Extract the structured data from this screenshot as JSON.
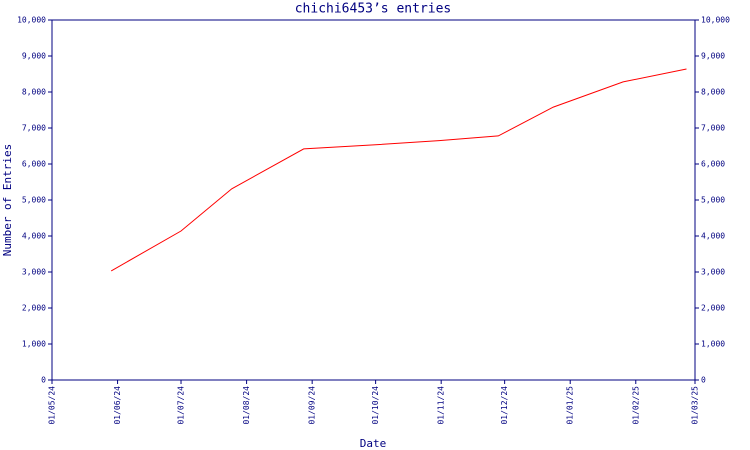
{
  "chart_data": {
    "type": "line",
    "title": "chichi6453’s entries",
    "x_label": "Date",
    "y_label": "Number of Entries",
    "x": [
      "29/05/24",
      "01/07/24",
      "25/07/24",
      "28/08/24",
      "30/09/24",
      "31/10/24",
      "28/11/24",
      "24/12/24",
      "26/01/25",
      "25/02/25"
    ],
    "series": [
      {
        "name": "entries",
        "color": "#ff0000",
        "values": [
          3030,
          4140,
          5310,
          6420,
          6530,
          6650,
          6780,
          7580,
          8280,
          8640
        ]
      }
    ],
    "xlim": [
      "01/05/24",
      "01/03/25"
    ],
    "xticks": [
      "01/05/24",
      "01/06/24",
      "01/07/24",
      "01/08/24",
      "01/09/24",
      "01/10/24",
      "01/11/24",
      "01/12/24",
      "01/01/25",
      "01/02/25",
      "01/03/25"
    ],
    "ylim": [
      0,
      10000
    ],
    "yticks": [
      0,
      {
        "value": 1000,
        "label": "1,000"
      },
      {
        "value": 2000,
        "label": "2,000"
      },
      {
        "value": 3000,
        "label": "3,000"
      },
      {
        "value": 4000,
        "label": "4,000"
      },
      {
        "value": 5000,
        "label": "5,000"
      },
      {
        "value": 6000,
        "label": "6,000"
      },
      {
        "value": 7000,
        "label": "7,000"
      },
      {
        "value": 8000,
        "label": "8,000"
      },
      {
        "value": 9000,
        "label": "9,000"
      },
      {
        "value": 10000,
        "label": "10,000"
      }
    ],
    "y2lim": [
      0,
      10000
    ],
    "y2ticks": [
      0,
      {
        "value": 1000,
        "label": "1,000"
      },
      {
        "value": 2000,
        "label": "2,000"
      },
      {
        "value": 3000,
        "label": "3,000"
      },
      {
        "value": 4000,
        "label": "4,000"
      },
      {
        "value": 5000,
        "label": "5,000"
      },
      {
        "value": 6000,
        "label": "6,000"
      },
      {
        "value": 7000,
        "label": "7,000"
      },
      {
        "value": 8000,
        "label": "8,000"
      },
      {
        "value": 9000,
        "label": "9,000"
      },
      {
        "value": 10000,
        "label": "10,000"
      }
    ],
    "grid": false
  }
}
